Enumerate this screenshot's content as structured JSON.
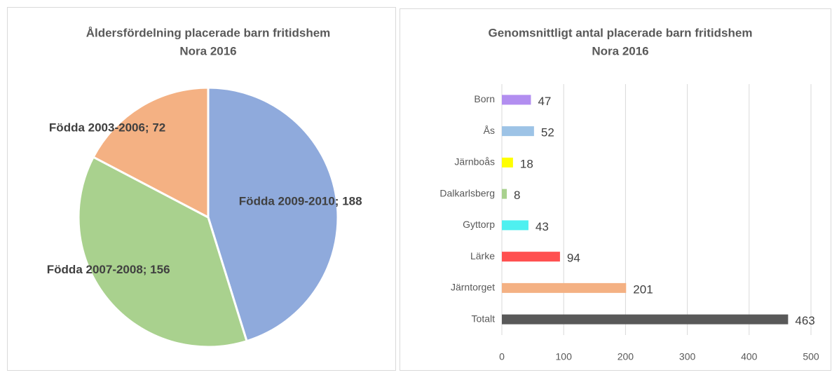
{
  "chart_data": [
    {
      "type": "pie",
      "title": [
        "Åldersfördelning placerade barn fritidshem",
        "Nora 2016"
      ],
      "values": [
        188,
        156,
        72
      ],
      "value_labels": [
        "Födda 2009-2010; 188",
        "Födda 2007-2008; 156",
        "Födda 2003-2006; 72"
      ],
      "colors": [
        "#8faadc",
        "#a9d18e",
        "#f4b183"
      ]
    },
    {
      "type": "hbar",
      "title": [
        "Genomsnittligt antal placerade barn fritidshem",
        "Nora 2016"
      ],
      "categories": [
        "Born",
        "Ås",
        "Järnboås",
        "Dalkarlsberg",
        "Gyttorp",
        "Lärke",
        "Järntorget",
        "Totalt"
      ],
      "values": [
        47,
        52,
        18,
        8,
        43,
        94,
        201,
        463
      ],
      "colors": [
        "#b28ef0",
        "#9dc3e6",
        "#ffff00",
        "#a9d18e",
        "#4ff0f0",
        "#ff5050",
        "#f4b183",
        "#595959"
      ],
      "xlim": [
        0,
        500
      ],
      "xticks": [
        0,
        100,
        200,
        300,
        400,
        500
      ],
      "grid": true
    }
  ]
}
